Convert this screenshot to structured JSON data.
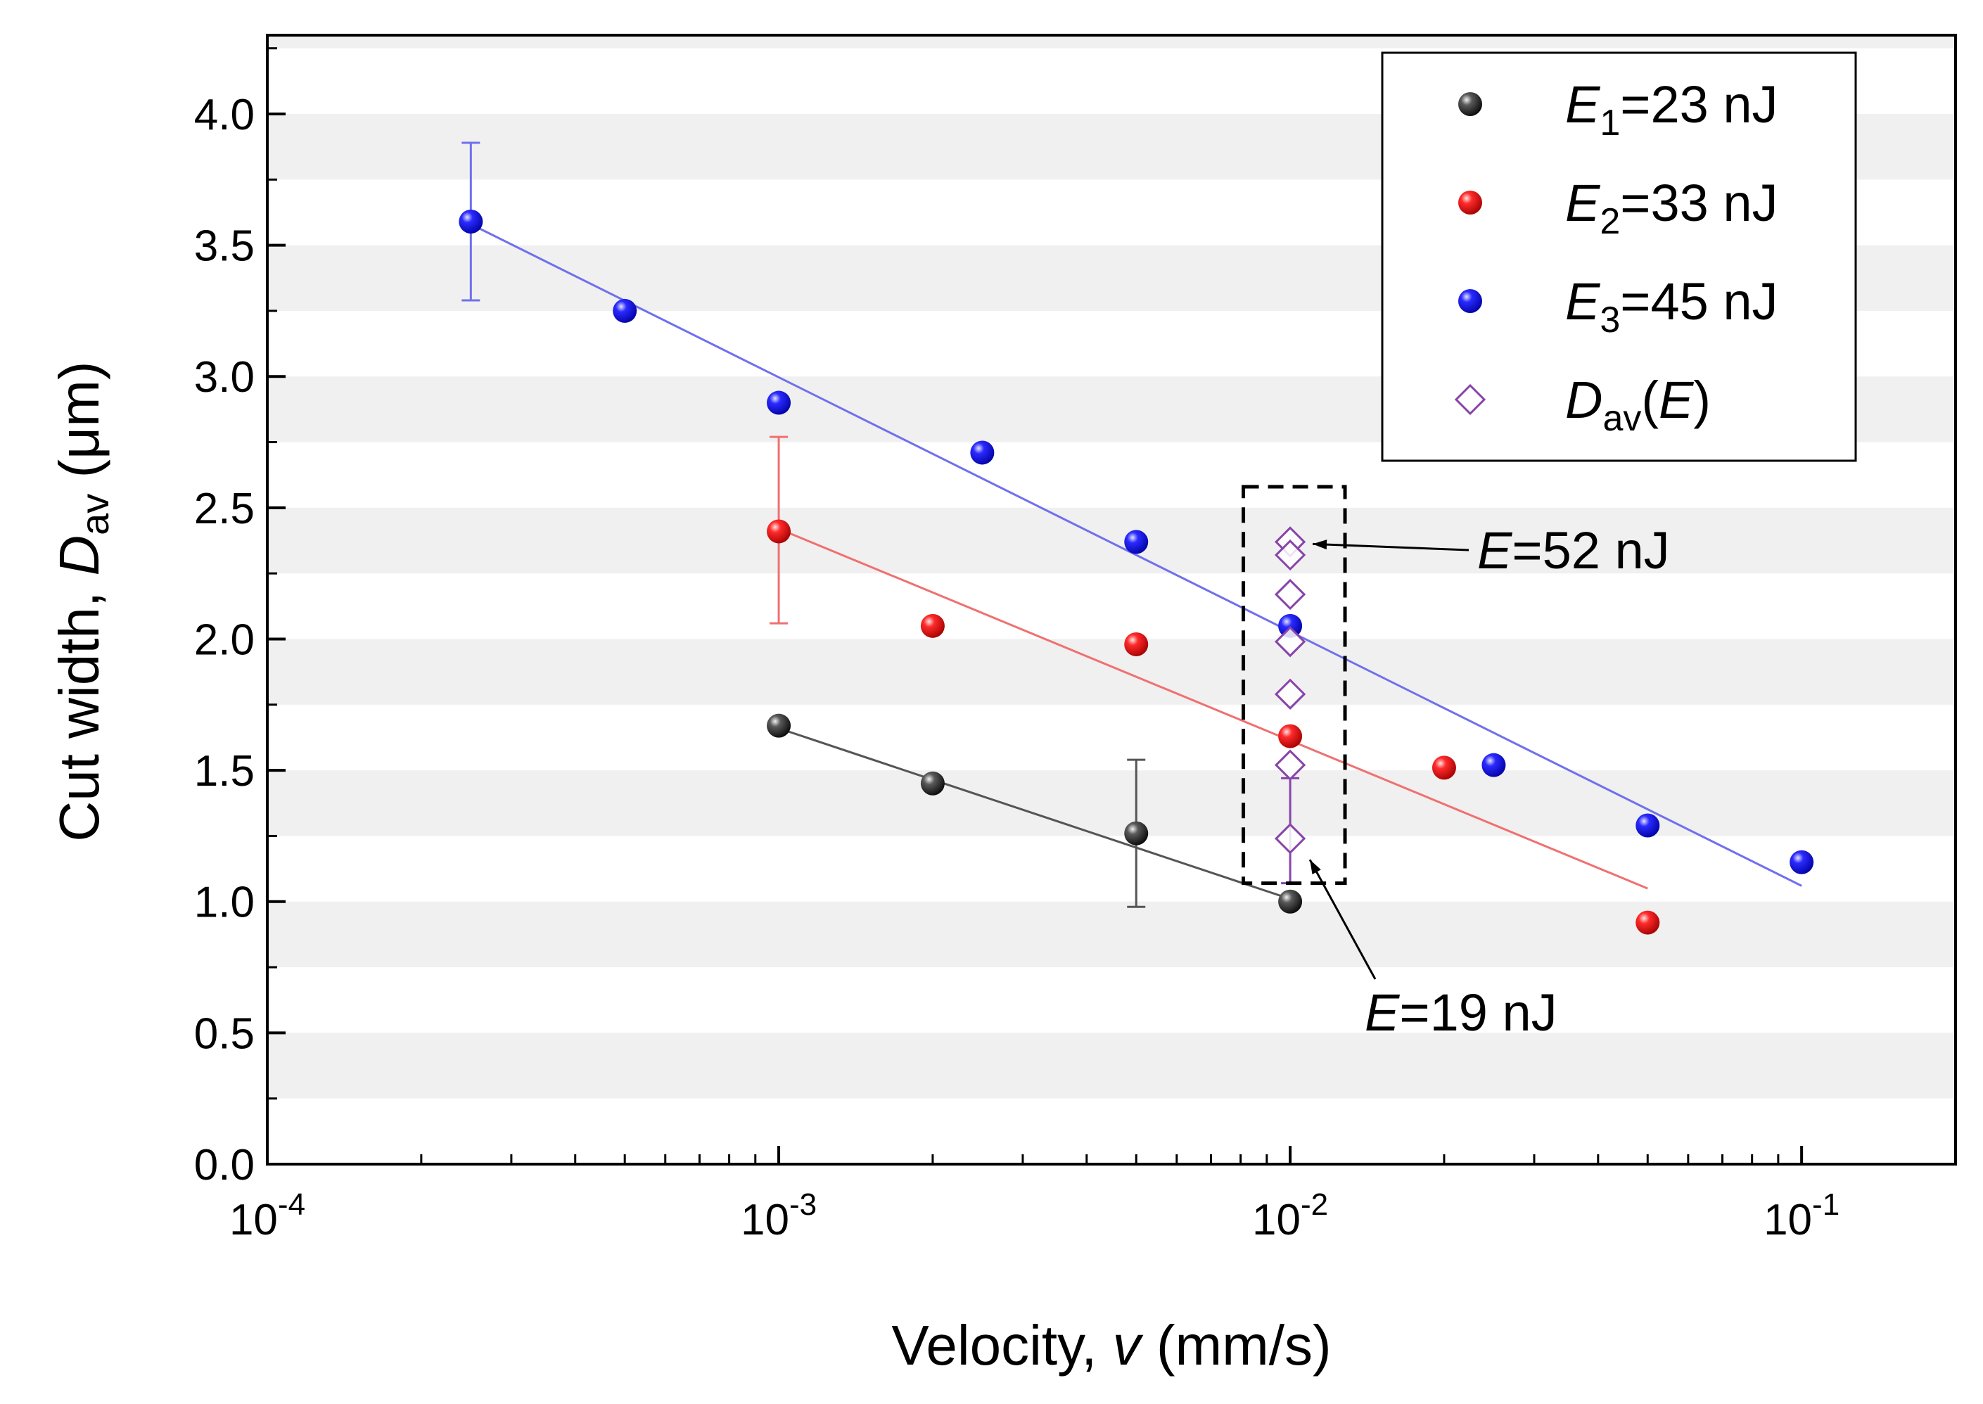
{
  "chart_data": {
    "type": "scatter",
    "xscale": "log",
    "xlim": [
      0.0001,
      0.2
    ],
    "ylim": [
      0,
      4.3
    ],
    "xlabel": {
      "prefix": "Velocity, ",
      "var": "v",
      "suffix": " (mm/s)"
    },
    "ylabel": {
      "prefix": "Cut width, ",
      "var": "D",
      "sub": "av",
      "suffix": " (μm)"
    },
    "yticks": [
      "0.0",
      "0.5",
      "1.0",
      "1.5",
      "2.0",
      "2.5",
      "3.0",
      "3.5",
      "4.0"
    ],
    "xticks": [
      {
        "value": 0.0001,
        "base": "10",
        "exp": "-4"
      },
      {
        "value": 0.001,
        "base": "10",
        "exp": "-3"
      },
      {
        "value": 0.01,
        "base": "10",
        "exp": "-2"
      },
      {
        "value": 0.1,
        "base": "10",
        "exp": "-1"
      }
    ],
    "background": "alternating horizontal gray bands",
    "series": [
      {
        "id": "e1",
        "legend": {
          "var": "E",
          "sub": "1",
          "rest": "=23 nJ"
        },
        "color": "#1a1a1a",
        "marker": "sphere",
        "x": [
          0.001,
          0.002,
          0.005,
          0.01
        ],
        "y": [
          1.67,
          1.45,
          1.26,
          1.0
        ],
        "errorbars": [
          {
            "x": 0.005,
            "y": 1.26,
            "low": 0.98,
            "high": 1.54
          }
        ],
        "fit": {
          "x": [
            0.001,
            0.01
          ],
          "y": [
            1.66,
            1.01
          ],
          "color": "#555555"
        }
      },
      {
        "id": "e2",
        "legend": {
          "var": "E",
          "sub": "2",
          "rest": "=33 nJ"
        },
        "color": "#ee1111",
        "marker": "sphere",
        "x": [
          0.001,
          0.002,
          0.005,
          0.01,
          0.02,
          0.05
        ],
        "y": [
          2.41,
          2.05,
          1.98,
          1.63,
          1.51,
          0.92
        ],
        "errorbars": [
          {
            "x": 0.001,
            "y": 2.41,
            "low": 2.06,
            "high": 2.77
          }
        ],
        "fit": {
          "x": [
            0.001,
            0.05
          ],
          "y": [
            2.42,
            1.05
          ],
          "color": "#f07070"
        }
      },
      {
        "id": "e3",
        "legend": {
          "var": "E",
          "sub": "3",
          "rest": "=45 nJ"
        },
        "color": "#1a1aee",
        "marker": "sphere",
        "x": [
          0.00025,
          0.0005,
          0.001,
          0.0025,
          0.005,
          0.01,
          0.025,
          0.05,
          0.1
        ],
        "y": [
          3.59,
          3.25,
          2.9,
          2.71,
          2.37,
          2.05,
          1.52,
          1.29,
          1.15
        ],
        "errorbars": [
          {
            "x": 0.00025,
            "y": 3.59,
            "low": 3.29,
            "high": 3.89
          }
        ],
        "fit": {
          "x": [
            0.00025,
            0.1
          ],
          "y": [
            3.58,
            1.06
          ],
          "color": "#7070ee"
        }
      },
      {
        "id": "dav",
        "legend": {
          "var": "D",
          "sub": "av",
          "rest": "(E)"
        },
        "color": "#8844aa",
        "marker": "open-diamond",
        "x": [
          0.01,
          0.01,
          0.01,
          0.01,
          0.01,
          0.01,
          0.01
        ],
        "y": [
          2.37,
          2.32,
          2.17,
          1.99,
          1.79,
          1.52,
          1.24
        ],
        "errorbars": [
          {
            "x": 0.01,
            "y": 1.24,
            "low": 1.07,
            "high": 1.47
          }
        ]
      }
    ],
    "annotations": [
      {
        "var": "E",
        "rest": "=52 nJ",
        "target_x": 0.01,
        "target_y": 2.37
      },
      {
        "var": "E",
        "rest": "=19 nJ",
        "target_x": 0.01,
        "target_y": 1.24
      }
    ],
    "highlight_box": {
      "x": [
        0.0081,
        0.0128
      ],
      "y": [
        1.07,
        2.58
      ]
    }
  }
}
